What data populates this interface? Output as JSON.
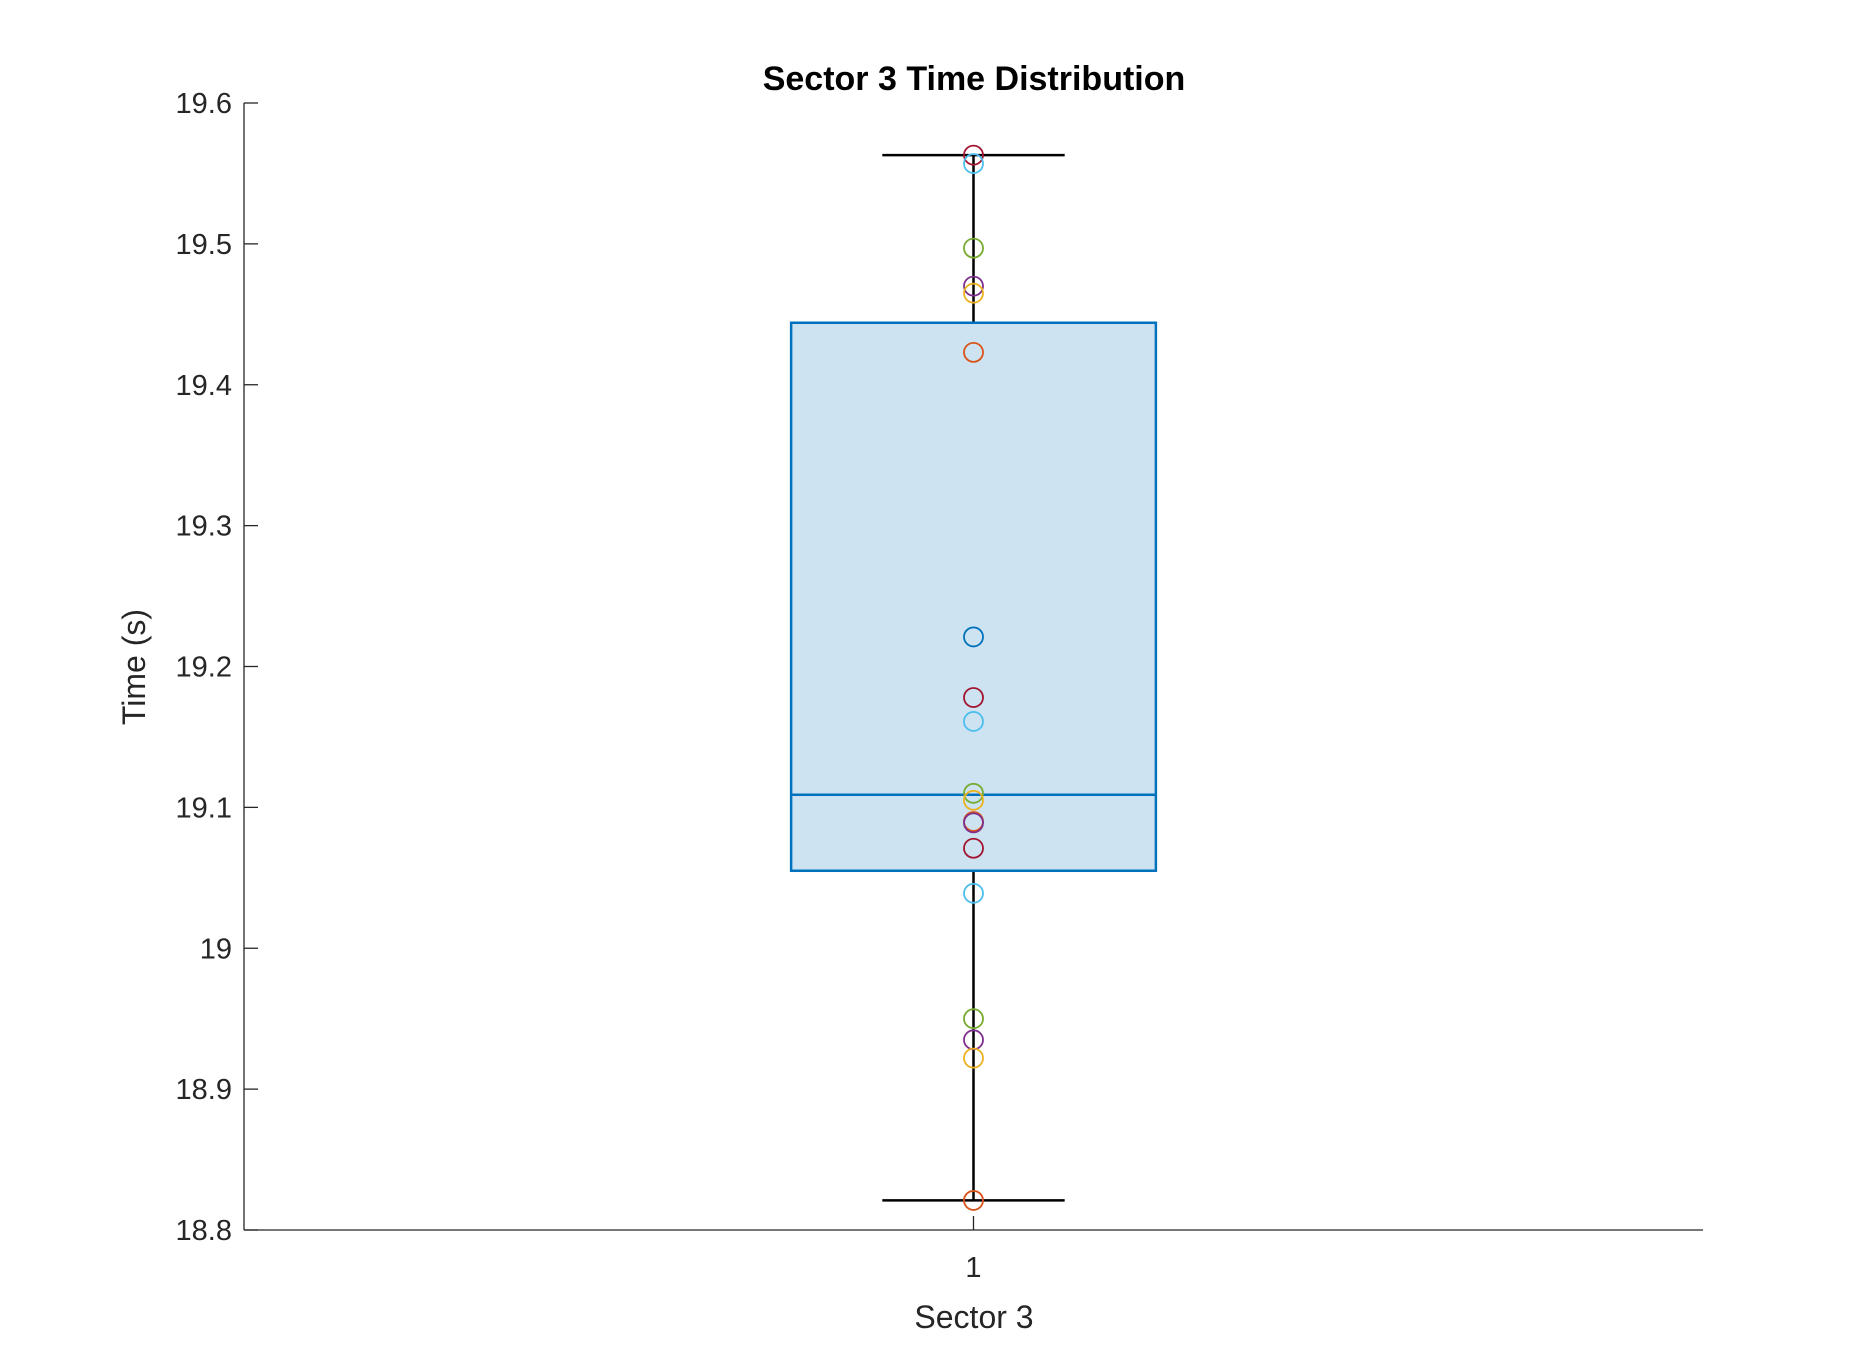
{
  "chart_data": {
    "type": "boxplot",
    "title": "Sector 3 Time Distribution",
    "xlabel": "Sector 3",
    "ylabel": "Time (s)",
    "ylim": [
      18.8,
      19.6
    ],
    "yticks": [
      18.8,
      18.9,
      19.0,
      19.1,
      19.2,
      19.3,
      19.4,
      19.5,
      19.6
    ],
    "ytick_labels": [
      "18.8",
      "18.9",
      "19",
      "19.1",
      "19.2",
      "19.3",
      "19.4",
      "19.5",
      "19.6"
    ],
    "xticks": [
      1
    ],
    "xtick_labels": [
      "1"
    ],
    "xlim": [
      0.5,
      1.5
    ],
    "box": {
      "x": 1,
      "whisker_low": 18.821,
      "q1": 19.055,
      "median": 19.109,
      "q3": 19.444,
      "whisker_high": 19.563
    },
    "box_fill_color": "#cde3f1",
    "box_edge_color": "#0072bd",
    "whisker_color": "#000000",
    "points": [
      {
        "x": 1,
        "y": 19.563,
        "color": "#a2142f"
      },
      {
        "x": 1,
        "y": 19.557,
        "color": "#4dbeee"
      },
      {
        "x": 1,
        "y": 19.497,
        "color": "#77ac30"
      },
      {
        "x": 1,
        "y": 19.47,
        "color": "#7e2f8e"
      },
      {
        "x": 1,
        "y": 19.465,
        "color": "#edb120"
      },
      {
        "x": 1,
        "y": 19.423,
        "color": "#d95319"
      },
      {
        "x": 1,
        "y": 19.221,
        "color": "#0072bd"
      },
      {
        "x": 1,
        "y": 19.178,
        "color": "#a2142f"
      },
      {
        "x": 1,
        "y": 19.161,
        "color": "#4dbeee"
      },
      {
        "x": 1,
        "y": 19.11,
        "color": "#77ac30"
      },
      {
        "x": 1,
        "y": 19.105,
        "color": "#edb120"
      },
      {
        "x": 1,
        "y": 19.09,
        "color": "#d95319"
      },
      {
        "x": 1,
        "y": 19.089,
        "color": "#7e2f8e"
      },
      {
        "x": 1,
        "y": 19.071,
        "color": "#a2142f"
      },
      {
        "x": 1,
        "y": 19.039,
        "color": "#4dbeee"
      },
      {
        "x": 1,
        "y": 18.95,
        "color": "#77ac30"
      },
      {
        "x": 1,
        "y": 18.935,
        "color": "#7e2f8e"
      },
      {
        "x": 1,
        "y": 18.922,
        "color": "#edb120"
      },
      {
        "x": 1,
        "y": 18.821,
        "color": "#d95319"
      }
    ]
  }
}
